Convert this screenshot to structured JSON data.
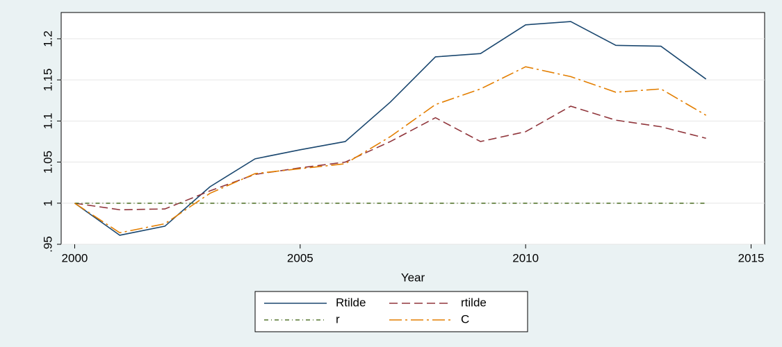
{
  "chart_data": {
    "type": "line",
    "xlabel": "Year",
    "x": [
      2000,
      2001,
      2002,
      2003,
      2004,
      2005,
      2006,
      2007,
      2008,
      2009,
      2010,
      2011,
      2012,
      2013,
      2014
    ],
    "series": [
      {
        "name": "Rtilde",
        "color": "#1a476f",
        "dash": "none",
        "values": [
          1.0,
          0.961,
          0.972,
          1.02,
          1.054,
          1.065,
          1.075,
          1.123,
          1.178,
          1.182,
          1.217,
          1.221,
          1.192,
          1.191,
          1.151
        ]
      },
      {
        "name": "rtilde",
        "color": "#90353b",
        "dash": "12 6",
        "values": [
          1.0,
          0.992,
          0.993,
          1.015,
          1.035,
          1.043,
          1.05,
          1.075,
          1.104,
          1.075,
          1.087,
          1.118,
          1.101,
          1.093,
          1.079
        ]
      },
      {
        "name": "r",
        "color": "#55752f",
        "dash": "6 4 1 4",
        "values": [
          1.0,
          1.0,
          1.0,
          1.0,
          1.0,
          1.0,
          1.0,
          1.0,
          1.0,
          1.0,
          1.0,
          1.0,
          1.0,
          1.0,
          1.0
        ]
      },
      {
        "name": "C",
        "color": "#e37e00",
        "dash": "18 5 3 5",
        "values": [
          1.0,
          0.964,
          0.975,
          1.012,
          1.036,
          1.042,
          1.048,
          1.081,
          1.12,
          1.139,
          1.166,
          1.154,
          1.135,
          1.139,
          1.107
        ]
      }
    ],
    "xlim": [
      1999.7,
      2015.3
    ],
    "xticks": [
      2000,
      2005,
      2010,
      2015
    ],
    "ylim": [
      0.95,
      1.232
    ],
    "yticks": [
      {
        "value": 0.95,
        "label": ".95"
      },
      1,
      1.05,
      1.1,
      1.15,
      1.2
    ],
    "grid": true
  }
}
